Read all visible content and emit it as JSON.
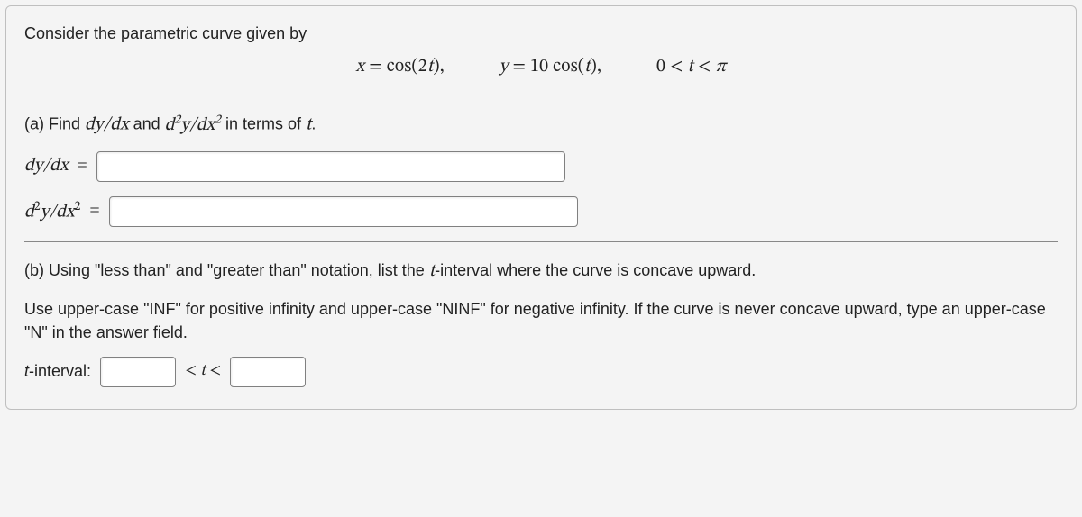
{
  "intro": "Consider the parametric curve given by",
  "equations": {
    "eq1": "x = cos(2t),",
    "eq2": "y = 10 cos(t),",
    "eq3": "0 < t < π"
  },
  "part_a": {
    "prompt_prefix": "(a) Find ",
    "m1": "dy/dx",
    "and": " and ",
    "m2": "d²y/dx²",
    "prompt_suffix": " in terms of ",
    "tvar": "t",
    "dot": ".",
    "label_dy": "dy/dx",
    "label_d2y": "d²y/dx²",
    "equals": "="
  },
  "part_b": {
    "line1_a": "(b) Using \"less than\" and \"greater than\" notation, list the ",
    "tvar": "t",
    "line1_b": "-interval where the curve is concave upward.",
    "line2": "Use upper-case \"INF\" for positive infinity and upper-case \"NINF\" for negative infinity. If the curve is never concave upward, type an upper-case \"N\" in the answer field.",
    "interval_label_a": "t",
    "interval_label_b": "-interval:",
    "lt_t_lt": "< t <"
  },
  "colors": {
    "panel_bg": "#f4f4f4",
    "border": "#bfbfbf",
    "hr": "#888888",
    "input_border": "#808080",
    "input_bg": "#ffffff",
    "text": "#222222"
  }
}
